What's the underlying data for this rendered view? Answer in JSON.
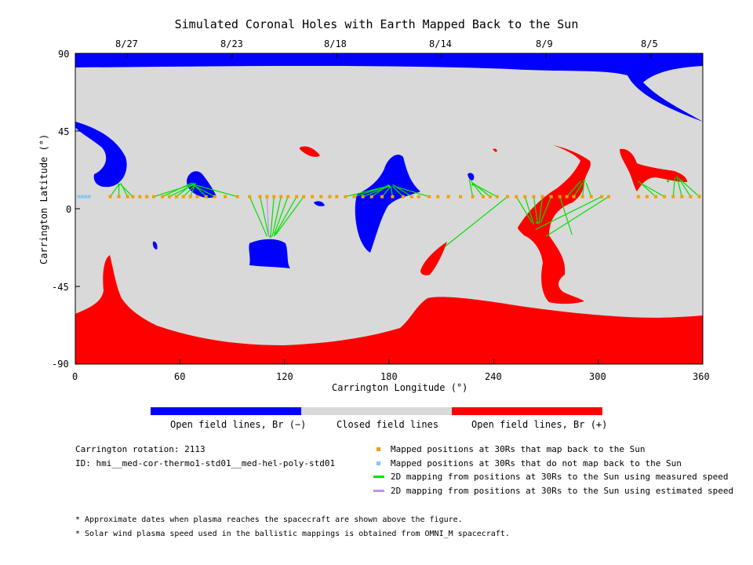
{
  "chart_data": {
    "type": "map",
    "title": "Simulated Coronal Holes with Earth Mapped Back to the Sun",
    "xlabel": "Carrington Longitude (°)",
    "ylabel": "Carrington Latitude (°)",
    "xlim": [
      0,
      360
    ],
    "ylim": [
      -90,
      90
    ],
    "x_ticks": [
      "0",
      "60",
      "120",
      "180",
      "240",
      "300",
      "360"
    ],
    "y_ticks": [
      "90",
      "45",
      "0",
      "-45",
      "-90"
    ],
    "top_dates": [
      {
        "label": "8/27",
        "lon": 30
      },
      {
        "label": "8/23",
        "lon": 90
      },
      {
        "label": "8/18",
        "lon": 150
      },
      {
        "label": "8/14",
        "lon": 210
      },
      {
        "label": "8/9",
        "lon": 270
      },
      {
        "label": "8/5",
        "lon": 330
      }
    ],
    "colors": {
      "open_negative": "#0000ff",
      "closed": "#d9d9d9",
      "open_positive": "#ff0000",
      "mapped": "#f0a000",
      "unmapped": "#88c8f0",
      "measured_line": "#00e000",
      "estimated_line": "#c090f0"
    },
    "colorbar": [
      {
        "label": "Open field lines, Br (−)",
        "color": "#0000ff"
      },
      {
        "label": "Closed field lines",
        "color": "#d9d9d9"
      },
      {
        "label": "Open field lines, Br (+)",
        "color": "#ff0000"
      }
    ],
    "mapped_latitude": 7,
    "mapped_points_lon": [
      20,
      25,
      30,
      33,
      37,
      41,
      45,
      50,
      54,
      58,
      62,
      66,
      70,
      75,
      80,
      86,
      93,
      100,
      106,
      110,
      114,
      118,
      122,
      127,
      131,
      136,
      141,
      146,
      150,
      155,
      160,
      165,
      170,
      176,
      182,
      188,
      193,
      197,
      203,
      208,
      214,
      221,
      228,
      234,
      238,
      242,
      248,
      253,
      258,
      263,
      268,
      273,
      278,
      282,
      286,
      291,
      296,
      302,
      306,
      323,
      328,
      333,
      338,
      343,
      348,
      353,
      358
    ],
    "unmapped_points_lon": [
      2,
      4,
      6,
      8
    ],
    "footpoints": [
      {
        "lon": 25,
        "lat": 14
      },
      {
        "lon": 68,
        "lat": 14
      },
      {
        "lon": 112,
        "lat": -16
      },
      {
        "lon": 180,
        "lat": 13
      },
      {
        "lon": 228,
        "lat": 14
      },
      {
        "lon": 265,
        "lat": -8
      },
      {
        "lon": 292,
        "lat": 16
      },
      {
        "lon": 340,
        "lat": 16
      }
    ],
    "mapping_lines": [
      {
        "from_lon": 20,
        "to_lon": 25,
        "to_lat": 14
      },
      {
        "from_lon": 25,
        "to_lon": 25,
        "to_lat": 14
      },
      {
        "from_lon": 30,
        "to_lon": 26,
        "to_lat": 15
      },
      {
        "from_lon": 33,
        "to_lon": 26,
        "to_lat": 14
      },
      {
        "from_lon": 45,
        "to_lon": 67,
        "to_lat": 14
      },
      {
        "from_lon": 50,
        "to_lon": 67,
        "to_lat": 15
      },
      {
        "from_lon": 54,
        "to_lon": 68,
        "to_lat": 14
      },
      {
        "from_lon": 58,
        "to_lon": 68,
        "to_lat": 15
      },
      {
        "from_lon": 62,
        "to_lon": 69,
        "to_lat": 14
      },
      {
        "from_lon": 66,
        "to_lon": 69,
        "to_lat": 15
      },
      {
        "from_lon": 75,
        "to_lon": 68,
        "to_lat": 14
      },
      {
        "from_lon": 80,
        "to_lon": 67,
        "to_lat": 14
      },
      {
        "from_lon": 93,
        "to_lon": 68,
        "to_lat": 14
      },
      {
        "from_lon": 100,
        "to_lon": 110,
        "to_lat": -16
      },
      {
        "from_lon": 106,
        "to_lon": 111,
        "to_lat": -16
      },
      {
        "from_lon": 114,
        "to_lon": 112,
        "to_lat": -16
      },
      {
        "from_lon": 118,
        "to_lon": 113,
        "to_lat": -16
      },
      {
        "from_lon": 122,
        "to_lon": 114,
        "to_lat": -15
      },
      {
        "from_lon": 127,
        "to_lon": 114,
        "to_lat": -16
      },
      {
        "from_lon": 131,
        "to_lon": 115,
        "to_lat": -15
      },
      {
        "from_lon": 155,
        "to_lon": 179,
        "to_lat": 13
      },
      {
        "from_lon": 160,
        "to_lon": 179,
        "to_lat": 13
      },
      {
        "from_lon": 165,
        "to_lon": 180,
        "to_lat": 13
      },
      {
        "from_lon": 170,
        "to_lon": 180,
        "to_lat": 14
      },
      {
        "from_lon": 176,
        "to_lon": 181,
        "to_lat": 13
      },
      {
        "from_lon": 182,
        "to_lon": 181,
        "to_lat": 13
      },
      {
        "from_lon": 188,
        "to_lon": 182,
        "to_lat": 13
      },
      {
        "from_lon": 193,
        "to_lon": 182,
        "to_lat": 14
      },
      {
        "from_lon": 203,
        "to_lon": 183,
        "to_lat": 13
      },
      {
        "from_lon": 228,
        "to_lon": 226,
        "to_lat": 17
      },
      {
        "from_lon": 234,
        "to_lon": 227,
        "to_lat": 16
      },
      {
        "from_lon": 238,
        "to_lon": 228,
        "to_lat": 15
      },
      {
        "from_lon": 242,
        "to_lon": 229,
        "to_lat": 14
      },
      {
        "from_lon": 248,
        "to_lon": 212,
        "to_lat": -22
      },
      {
        "from_lon": 253,
        "to_lon": 262,
        "to_lat": -8
      },
      {
        "from_lon": 258,
        "to_lon": 263,
        "to_lat": -9
      },
      {
        "from_lon": 263,
        "to_lon": 265,
        "to_lat": -7
      },
      {
        "from_lon": 268,
        "to_lon": 266,
        "to_lat": -9
      },
      {
        "from_lon": 273,
        "to_lon": 267,
        "to_lat": -8
      },
      {
        "from_lon": 278,
        "to_lon": 285,
        "to_lat": -15
      },
      {
        "from_lon": 282,
        "to_lon": 290,
        "to_lat": 16
      },
      {
        "from_lon": 286,
        "to_lon": 291,
        "to_lat": 15
      },
      {
        "from_lon": 291,
        "to_lon": 292,
        "to_lat": 16
      },
      {
        "from_lon": 296,
        "to_lon": 293,
        "to_lat": 15
      },
      {
        "from_lon": 302,
        "to_lon": 264,
        "to_lat": -12
      },
      {
        "from_lon": 306,
        "to_lon": 270,
        "to_lat": -16
      },
      {
        "from_lon": 333,
        "to_lon": 323,
        "to_lat": 16
      },
      {
        "from_lon": 338,
        "to_lon": 324,
        "to_lat": 15
      },
      {
        "from_lon": 343,
        "to_lon": 344,
        "to_lat": 18
      },
      {
        "from_lon": 348,
        "to_lon": 345,
        "to_lat": 19
      },
      {
        "from_lon": 353,
        "to_lon": 346,
        "to_lat": 18
      },
      {
        "from_lon": 358,
        "to_lon": 347,
        "to_lat": 17
      }
    ],
    "estimated_line": {
      "from_lon": 110,
      "to_lon": 111,
      "to_lat": -16
    },
    "legend": [
      {
        "label": "Mapped positions at 30Rs that map back to the Sun",
        "kind": "square",
        "color": "#f0a000"
      },
      {
        "label": "Mapped positions at 30Rs that do not map back to the Sun",
        "kind": "square",
        "color": "#88c8f0"
      },
      {
        "label": "2D mapping from positions at 30Rs to the Sun using measured speed",
        "kind": "line",
        "color": "#00e000"
      },
      {
        "label": "2D mapping from positions at 30Rs to the Sun using estimated speed",
        "kind": "line",
        "color": "#c090f0"
      }
    ]
  },
  "info": {
    "rotation": "Carrington rotation: 2113",
    "id": "ID: hmi__med-cor-thermo1-std01__med-hel-poly-std01"
  },
  "notes": [
    "* Approximate dates when plasma reaches the spacecraft are shown above the figure.",
    "* Solar wind plasma speed used in the ballistic mappings is obtained from OMNI_M spacecraft."
  ]
}
